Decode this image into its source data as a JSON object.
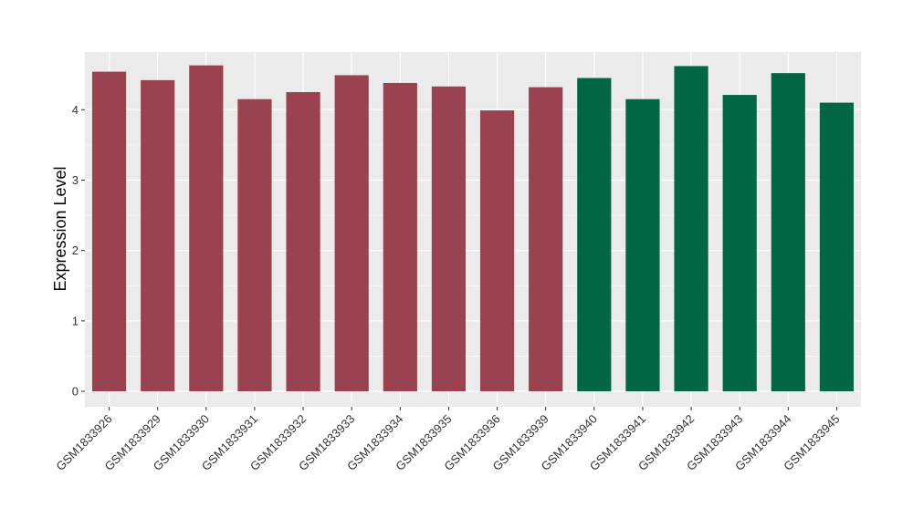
{
  "chart_data": {
    "type": "bar",
    "ylabel": "Expression Level",
    "xlabel": "",
    "ylim": [
      -0.22,
      4.82
    ],
    "yticks": [
      0,
      1,
      2,
      3,
      4
    ],
    "grid": true,
    "categories": [
      "GSM1833926",
      "GSM1833929",
      "GSM1833930",
      "GSM1833931",
      "GSM1833932",
      "GSM1833933",
      "GSM1833934",
      "GSM1833935",
      "GSM1833936",
      "GSM1833939",
      "GSM1833940",
      "GSM1833941",
      "GSM1833942",
      "GSM1833943",
      "GSM1833944",
      "GSM1833945"
    ],
    "values": [
      4.54,
      4.42,
      4.63,
      4.15,
      4.25,
      4.49,
      4.38,
      4.33,
      3.99,
      4.32,
      4.45,
      4.15,
      4.62,
      4.21,
      4.52,
      4.1
    ],
    "groups": [
      0,
      0,
      0,
      0,
      0,
      0,
      0,
      0,
      0,
      0,
      1,
      1,
      1,
      1,
      1,
      1
    ],
    "group_colors": [
      "#9a4250",
      "#006644"
    ]
  }
}
